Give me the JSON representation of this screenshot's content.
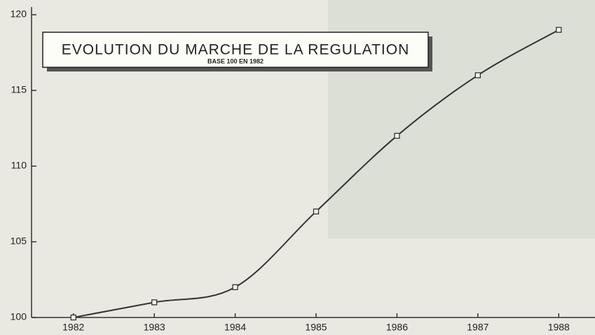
{
  "chart_data": {
    "type": "line",
    "title": "EVOLUTION DU MARCHE DE LA REGULATION",
    "subtitle": "BASE 100 EN 1982",
    "x": [
      1982,
      1983,
      1984,
      1985,
      1986,
      1987,
      1988
    ],
    "values": [
      100,
      101,
      102,
      107,
      112,
      116,
      119
    ],
    "color": "#333333",
    "xlim": [
      1981.5,
      1988.5
    ],
    "xticks": [
      1982,
      1983,
      1984,
      1985,
      1986,
      1987,
      1988
    ],
    "ylim": [
      100,
      120
    ],
    "yticks": [
      100,
      105,
      110,
      115,
      120
    ]
  }
}
